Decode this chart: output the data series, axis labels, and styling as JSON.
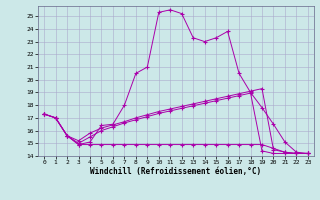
{
  "xlabel": "Windchill (Refroidissement éolien,°C)",
  "background_color": "#cce8e8",
  "grid_color": "#aaaacc",
  "line_color": "#aa00aa",
  "xlim": [
    -0.5,
    23.5
  ],
  "ylim": [
    14,
    25.8
  ],
  "yticks": [
    14,
    15,
    16,
    17,
    18,
    19,
    20,
    21,
    22,
    23,
    24,
    25
  ],
  "xticks": [
    0,
    1,
    2,
    3,
    4,
    5,
    6,
    7,
    8,
    9,
    10,
    11,
    12,
    13,
    14,
    15,
    16,
    17,
    18,
    19,
    20,
    21,
    22,
    23
  ],
  "line1_x": [
    0,
    1,
    2,
    3,
    4,
    5,
    6,
    7,
    8,
    9,
    10,
    11,
    12,
    13,
    14,
    15,
    16,
    17,
    18,
    19,
    20,
    21,
    22,
    23
  ],
  "line1_y": [
    17.3,
    17.0,
    15.6,
    14.9,
    15.1,
    16.4,
    16.5,
    18.0,
    20.5,
    21.0,
    25.3,
    25.5,
    25.2,
    23.3,
    23.0,
    23.3,
    23.8,
    20.5,
    19.0,
    17.8,
    16.5,
    15.1,
    14.3,
    14.2
  ],
  "line2_x": [
    0,
    1,
    2,
    3,
    4,
    5,
    6,
    7,
    8,
    9,
    10,
    11,
    12,
    13,
    14,
    15,
    16,
    17,
    18,
    19,
    20,
    21,
    22,
    23
  ],
  "line2_y": [
    17.3,
    17.0,
    15.6,
    15.2,
    15.8,
    16.2,
    16.45,
    16.7,
    17.0,
    17.25,
    17.5,
    17.7,
    17.9,
    18.1,
    18.3,
    18.5,
    18.7,
    18.9,
    19.1,
    19.3,
    14.5,
    14.3,
    14.2,
    14.2
  ],
  "line3_x": [
    0,
    1,
    2,
    3,
    4,
    5,
    6,
    7,
    8,
    9,
    10,
    11,
    12,
    13,
    14,
    15,
    16,
    17,
    18,
    19,
    20,
    21,
    22,
    23
  ],
  "line3_y": [
    17.3,
    17.0,
    15.6,
    14.9,
    14.9,
    14.9,
    14.9,
    14.9,
    14.9,
    14.9,
    14.9,
    14.9,
    14.9,
    14.9,
    14.9,
    14.9,
    14.9,
    14.9,
    14.9,
    14.9,
    14.6,
    14.3,
    14.2,
    14.2
  ],
  "line4_x": [
    0,
    1,
    2,
    3,
    4,
    5,
    6,
    7,
    8,
    9,
    10,
    11,
    12,
    13,
    14,
    15,
    16,
    17,
    18,
    19,
    20,
    21,
    22,
    23
  ],
  "line4_y": [
    17.3,
    17.0,
    15.6,
    15.0,
    15.5,
    16.0,
    16.3,
    16.6,
    16.85,
    17.1,
    17.35,
    17.55,
    17.75,
    17.95,
    18.15,
    18.35,
    18.55,
    18.75,
    18.95,
    14.4,
    14.2,
    14.2,
    14.2,
    14.2
  ]
}
